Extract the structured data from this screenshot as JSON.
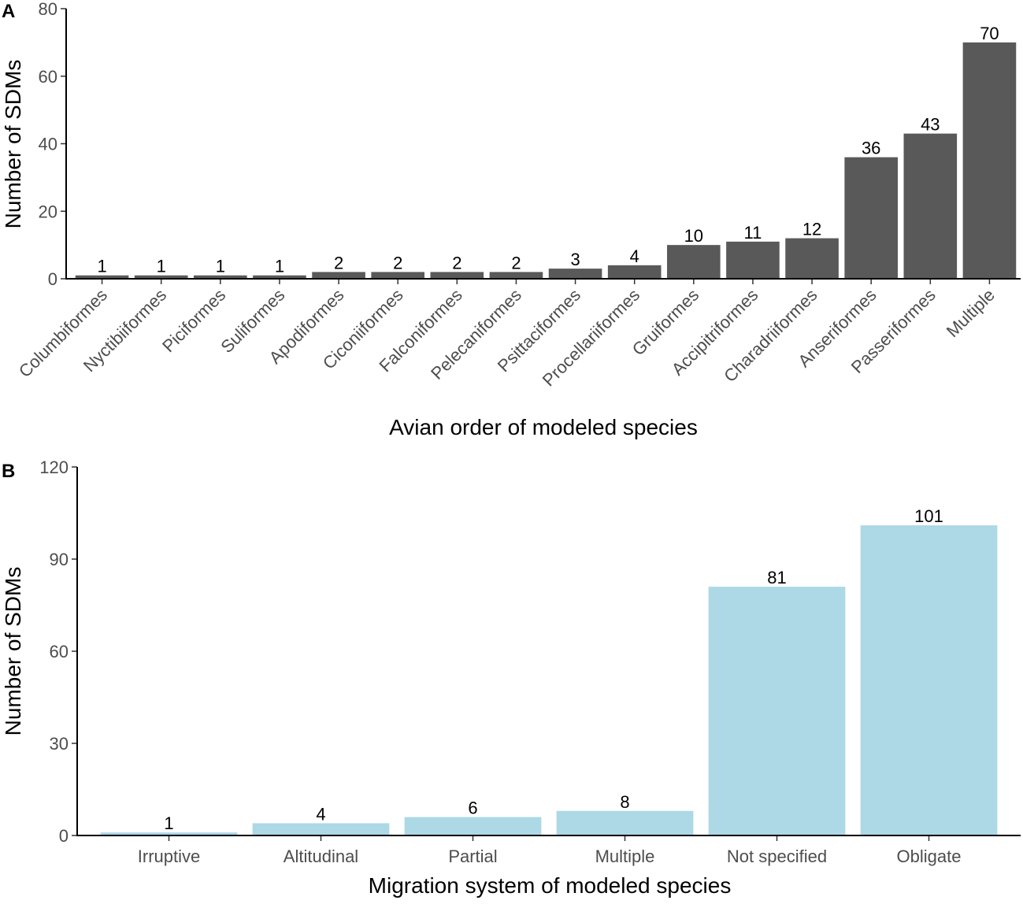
{
  "chart_data": [
    {
      "panel": "A",
      "type": "bar",
      "xlabel": "Avian order of modeled species",
      "ylabel": "Number of SDMs",
      "ylim": [
        0,
        80
      ],
      "yticks": [
        0,
        20,
        40,
        60,
        80
      ],
      "bar_color": "#595959",
      "categories": [
        "Columbiformes",
        "Nyctibiiformes",
        "Piciformes",
        "Suliformes",
        "Apodiformes",
        "Ciconiiformes",
        "Falconiformes",
        "Pelecaniformes",
        "Psittaciformes",
        "Procellariiformes",
        "Gruiformes",
        "Accipitriformes",
        "Charadriiformes",
        "Anseriformes",
        "Passeriformes",
        "Multiple"
      ],
      "values": [
        1,
        1,
        1,
        1,
        2,
        2,
        2,
        2,
        3,
        4,
        10,
        11,
        12,
        36,
        43,
        70
      ]
    },
    {
      "panel": "B",
      "type": "bar",
      "xlabel": "Migration system of modeled species",
      "ylabel": "Number of SDMs",
      "ylim": [
        0,
        120
      ],
      "yticks": [
        0,
        30,
        60,
        90,
        120
      ],
      "bar_color": "#add8e6",
      "categories": [
        "Irruptive",
        "Altitudinal",
        "Partial",
        "Multiple",
        "Not specified",
        "Obligate"
      ],
      "values": [
        1,
        4,
        6,
        8,
        81,
        101
      ]
    }
  ]
}
